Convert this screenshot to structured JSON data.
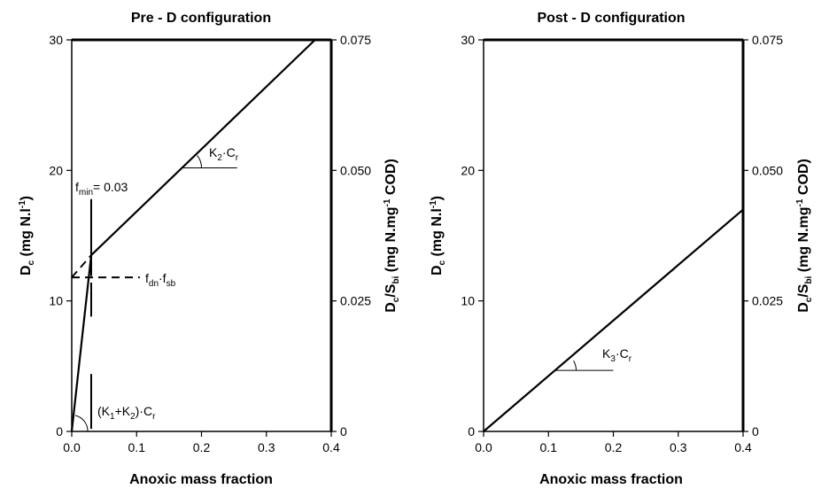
{
  "chart_data": [
    {
      "type": "line",
      "title": "Pre - D configuration",
      "xlabel": "Anoxic mass fraction",
      "ylabel_left": {
        "main": "D",
        "sub": "c",
        "rest": " (mg N.l",
        "sup": "-1",
        "close": ")"
      },
      "ylabel_right": {
        "p1": "D",
        "s1": "c",
        "p2": "/S",
        "s2": "bi",
        "p3": " (mg N.mg",
        "sup": "-1",
        "p4": " COD)"
      },
      "xlim": [
        0,
        0.4
      ],
      "ylim_left": [
        0,
        30
      ],
      "ylim_right": [
        0,
        0.075
      ],
      "x_ticks": [
        "0.0",
        "0.1",
        "0.2",
        "0.3",
        "0.4"
      ],
      "y_ticks_left": [
        "0",
        "10",
        "20",
        "30"
      ],
      "y_ticks_right": [
        "0",
        "0.025",
        "0.050",
        "0.075"
      ],
      "series": [
        {
          "values": [
            [
              0.0,
              0.0
            ],
            [
              0.03,
              13.5
            ]
          ]
        },
        {
          "values": [
            [
              0.03,
              13.5
            ],
            [
              0.375,
              30.0
            ]
          ]
        }
      ],
      "dashed": [
        {
          "values": [
            [
              0.0,
              11.8
            ],
            [
              0.105,
              11.8
            ]
          ]
        },
        {
          "values": [
            [
              0.0,
              11.8
            ],
            [
              0.03,
              13.5
            ]
          ]
        }
      ],
      "fmin_line": {
        "x": 0.03,
        "y_segments": [
          [
            0.2,
            4.4
          ],
          [
            8.8,
            11.4
          ],
          [
            11.9,
            17.8
          ]
        ]
      },
      "annotations": {
        "k2": {
          "base": "K",
          "sub": "2",
          "rest": "·C",
          "sub2": "r",
          "x": 0.205,
          "y": 21.3
        },
        "fmin": {
          "base": "f",
          "sub": "min",
          "rest": "= 0.03",
          "x": 0.005,
          "y": 18.3
        },
        "fdn": {
          "base": "f",
          "sub1": "dn",
          "mid": "·f",
          "sub2": "sb",
          "x": 0.112,
          "y": 11.2
        },
        "k1k2": {
          "p1": "(K",
          "s1": "1",
          "p2": "+K",
          "s2": "2",
          "p3": ")·C",
          "s3": "r",
          "x": 0.04,
          "y": 1.3
        }
      }
    },
    {
      "type": "line",
      "title": "Post - D configuration",
      "xlabel": "Anoxic mass fraction",
      "ylabel_left": {
        "main": "D",
        "sub": "c",
        "rest": " (mg N.l",
        "sup": "-1",
        "close": ")"
      },
      "ylabel_right": {
        "p1": "D",
        "s1": "c",
        "p2": "/S",
        "s2": "bi",
        "p3": " (mg N.mg",
        "sup": "-1",
        "p4": " COD)"
      },
      "xlim": [
        0,
        0.4
      ],
      "ylim_left": [
        0,
        30
      ],
      "ylim_right": [
        0,
        0.075
      ],
      "x_ticks": [
        "0.0",
        "0.1",
        "0.2",
        "0.3",
        "0.4"
      ],
      "y_ticks_left": [
        "0",
        "10",
        "20",
        "30"
      ],
      "y_ticks_right": [
        "0",
        "0.025",
        "0.050",
        "0.075"
      ],
      "series": [
        {
          "values": [
            [
              0.0,
              0.0
            ],
            [
              0.4,
              17.0
            ]
          ]
        }
      ],
      "annotations": {
        "k3": {
          "base": "K",
          "sub": "3",
          "rest": "·C",
          "sub2": "r",
          "x": 0.15,
          "y": 5.5
        }
      }
    }
  ]
}
